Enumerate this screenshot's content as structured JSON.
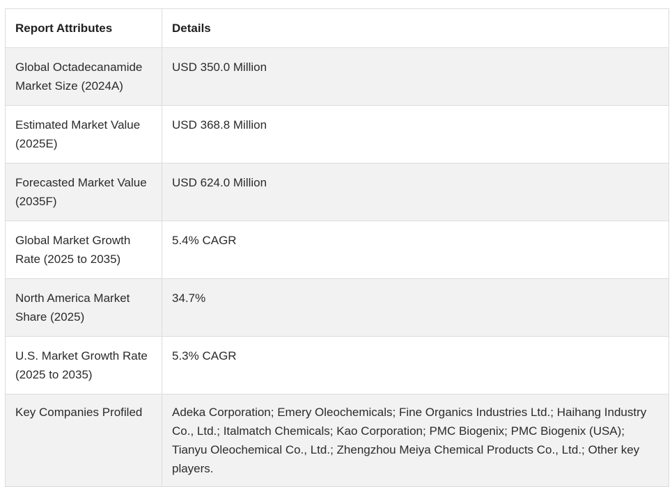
{
  "table": {
    "headers": [
      "Report Attributes",
      "Details"
    ],
    "rows": [
      {
        "attribute": "Global Octadecanamide Market Size (2024A)",
        "detail": "USD 350.0 Million"
      },
      {
        "attribute": "Estimated Market Value (2025E)",
        "detail": "USD 368.8 Million"
      },
      {
        "attribute": "Forecasted Market Value (2035F)",
        "detail": "USD 624.0 Million"
      },
      {
        "attribute": "Global Market Growth Rate (2025 to 2035)",
        "detail": "5.4% CAGR"
      },
      {
        "attribute": "North America Market Share (2025)",
        "detail": "34.7%"
      },
      {
        "attribute": "U.S. Market Growth Rate (2025 to 2035)",
        "detail": "5.3% CAGR"
      },
      {
        "attribute": "Key Companies Profiled",
        "detail": "Adeka Corporation; Emery Oleochemicals; Fine Organics Industries Ltd.; Haihang Industry Co., Ltd.; Italmatch Chemicals; Kao Corporation; PMC Biogenix; PMC Biogenix (USA); Tianyu Oleochemical Co., Ltd.; Zhengzhou Meiya Chemical Products Co., Ltd.; Other key players."
      }
    ]
  }
}
